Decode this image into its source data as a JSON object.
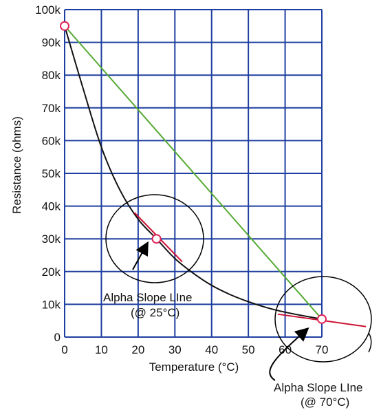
{
  "chart_data": {
    "type": "line",
    "title": "",
    "xlabel": "Temperature (°C)",
    "ylabel": "Resistance (ohms)",
    "xlim": [
      0,
      70
    ],
    "ylim": [
      0,
      100000
    ],
    "x_ticks": [
      0,
      10,
      20,
      30,
      40,
      50,
      60,
      70
    ],
    "x_tick_labels": [
      "0",
      "10",
      "20",
      "30",
      "40",
      "50",
      "60",
      "70"
    ],
    "y_ticks": [
      0,
      10000,
      20000,
      30000,
      40000,
      50000,
      60000,
      70000,
      80000,
      90000,
      100000
    ],
    "y_tick_labels": [
      "0",
      "10k",
      "20k",
      "30k",
      "40k",
      "50k",
      "60k",
      "70k",
      "80k",
      "90k",
      "100k"
    ],
    "grid": true,
    "legend": "none",
    "series": [
      {
        "kind": "curve",
        "color": "#111111",
        "x": [
          0,
          5,
          10,
          15,
          20,
          25,
          30,
          35,
          40,
          45,
          50,
          55,
          60,
          65,
          70
        ],
        "y": [
          95000,
          76000,
          58000,
          45000,
          36000,
          30000,
          24000,
          19500,
          15800,
          13000,
          10800,
          9000,
          7600,
          6500,
          5500
        ]
      },
      {
        "kind": "straight",
        "color": "#55aa33",
        "x": [
          0,
          70
        ],
        "y": [
          95000,
          5500
        ]
      }
    ],
    "markers": [
      {
        "x": 0,
        "y": 95000,
        "color": "#dd2255"
      },
      {
        "x": 25,
        "y": 30000,
        "color": "#dd2255"
      },
      {
        "x": 70,
        "y": 5500,
        "color": "#dd2255"
      }
    ],
    "tangents": [
      {
        "x": [
          19,
          32
        ],
        "y": [
          38000,
          23000
        ],
        "color": "#cc1133"
      },
      {
        "x": 58,
        "x2": 82,
        "y": 7000,
        "y2": 3200,
        "color": "#cc1133"
      }
    ],
    "annotations": [
      {
        "line1": "Alpha Slope LIne",
        "line2": "(@ 25°C)"
      },
      {
        "line1": "Alpha Slope LIne",
        "line2": "(@ 70°C)"
      }
    ]
  }
}
